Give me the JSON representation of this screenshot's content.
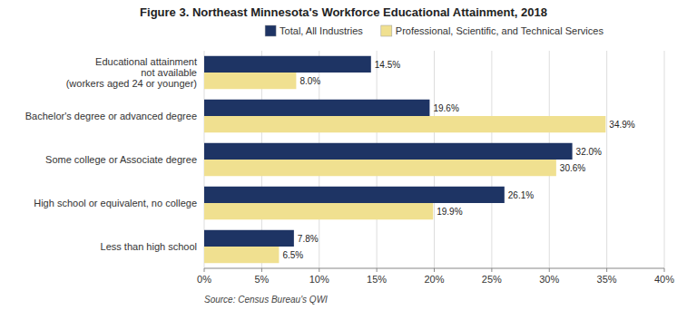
{
  "chart_data": {
    "type": "bar",
    "orientation": "horizontal",
    "title": "Figure 3. Northeast Minnesota's Workforce Educational Attainment, 2018",
    "annotations": [
      "Source: Census Bureau's QWI"
    ],
    "categories": [
      "Less than high school",
      "High school or equivalent, no college",
      "Some college or Associate degree",
      "Bachelor's degree or advanced degree",
      "Educational attainment\nnot available\n(workers aged 24 or younger)"
    ],
    "series": [
      {
        "name": "Total, All Industries",
        "color": "#1e3464",
        "values": [
          7.8,
          26.1,
          32.0,
          19.6,
          14.5
        ],
        "value_labels": [
          "7.8%",
          "26.1%",
          "32.0%",
          "19.6%",
          "14.5%"
        ]
      },
      {
        "name": "Professional, Scientific, and Technical Services",
        "color": "#f0e090",
        "values": [
          6.5,
          19.9,
          30.6,
          34.9,
          8.0
        ],
        "value_labels": [
          "6.5%",
          "19.9%",
          "30.6%",
          "34.9%",
          "8.0%"
        ]
      }
    ],
    "xlim": [
      0,
      40
    ],
    "xticks": [
      {
        "value": 0,
        "label": "0%"
      },
      {
        "value": 5,
        "label": "5%"
      },
      {
        "value": 10,
        "label": "10%"
      },
      {
        "value": 15,
        "label": "15%"
      },
      {
        "value": 20,
        "label": "20%"
      },
      {
        "value": 25,
        "label": "25%"
      },
      {
        "value": 30,
        "label": "30%"
      },
      {
        "value": 35,
        "label": "35%"
      },
      {
        "value": 40,
        "label": "40%"
      }
    ],
    "grid": true,
    "legend": "top",
    "data_labels": true
  }
}
